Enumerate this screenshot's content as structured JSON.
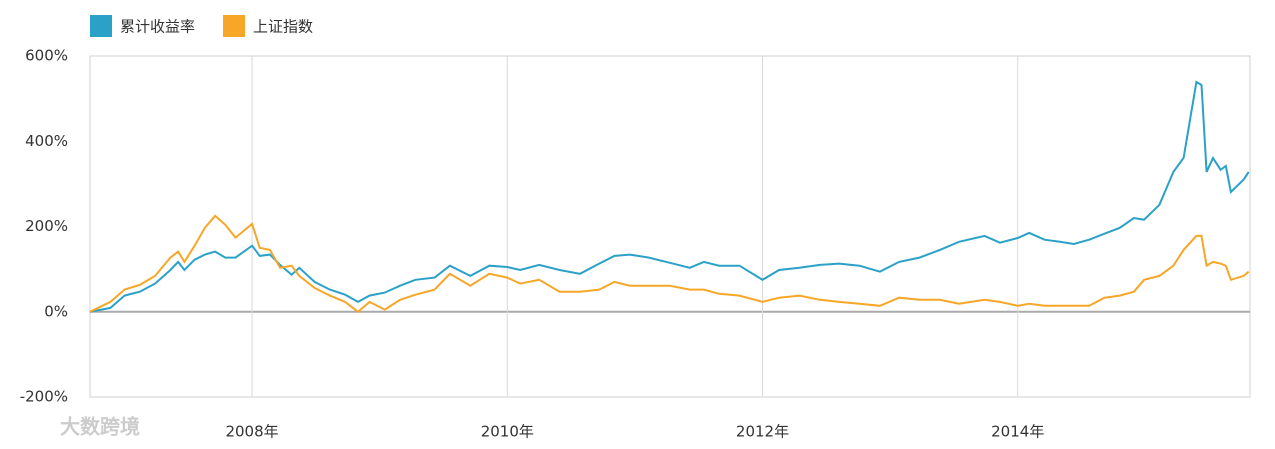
{
  "chart_data": {
    "type": "line",
    "legend": "top-left",
    "watermark": "大数跨境",
    "x": [
      2006.73,
      2006.89,
      2007.0,
      2007.12,
      2007.24,
      2007.36,
      2007.42,
      2007.47,
      2007.55,
      2007.63,
      2007.71,
      2007.79,
      2007.87,
      2008.0,
      2008.06,
      2008.14,
      2008.22,
      2008.31,
      2008.37,
      2008.49,
      2008.61,
      2008.73,
      2008.83,
      2008.92,
      2009.04,
      2009.16,
      2009.28,
      2009.43,
      2009.55,
      2009.71,
      2009.86,
      2010.0,
      2010.1,
      2010.25,
      2010.41,
      2010.57,
      2010.72,
      2010.84,
      2010.96,
      2011.11,
      2011.27,
      2011.43,
      2011.54,
      2011.66,
      2011.82,
      2012.0,
      2012.13,
      2012.29,
      2012.45,
      2012.6,
      2012.76,
      2012.92,
      2013.07,
      2013.23,
      2013.39,
      2013.54,
      2013.74,
      2013.86,
      2014.0,
      2014.09,
      2014.21,
      2014.33,
      2014.44,
      2014.56,
      2014.68,
      2014.8,
      2014.91,
      2014.99,
      2015.11,
      2015.22,
      2015.3,
      2015.4,
      2015.44,
      2015.48,
      2015.53,
      2015.59,
      2015.63,
      2015.67,
      2015.77,
      2015.81
    ],
    "series": [
      {
        "name": "累计收益率",
        "color": "#2ba1c8",
        "values": [
          0,
          9,
          38,
          47,
          66,
          98,
          117,
          98,
          122,
          134,
          141,
          127,
          127,
          155,
          131,
          134,
          110,
          87,
          103,
          70,
          52,
          40,
          23,
          38,
          45,
          61,
          75,
          80,
          108,
          84,
          108,
          105,
          98,
          110,
          98,
          89,
          113,
          131,
          134,
          127,
          115,
          103,
          117,
          108,
          108,
          75,
          98,
          103,
          110,
          113,
          108,
          94,
          117,
          127,
          145,
          164,
          178,
          162,
          173,
          185,
          169,
          164,
          159,
          169,
          183,
          197,
          220,
          216,
          251,
          328,
          361,
          539,
          532,
          328,
          361,
          333,
          342,
          281,
          310,
          328
        ]
      },
      {
        "name": "上证指数",
        "color": "#f7a627",
        "values": [
          0,
          23,
          52,
          63,
          84,
          127,
          141,
          117,
          155,
          197,
          225,
          204,
          174,
          206,
          150,
          145,
          103,
          108,
          84,
          56,
          38,
          23,
          0,
          23,
          5,
          28,
          40,
          52,
          89,
          61,
          89,
          80,
          66,
          75,
          47,
          47,
          52,
          70,
          61,
          61,
          61,
          52,
          52,
          42,
          38,
          23,
          33,
          38,
          28,
          23,
          19,
          14,
          33,
          28,
          28,
          19,
          28,
          23,
          14,
          19,
          14,
          14,
          14,
          14,
          33,
          38,
          47,
          75,
          84,
          108,
          145,
          178,
          178,
          108,
          117,
          113,
          108,
          75,
          84,
          94
        ]
      }
    ],
    "xlim": [
      2006.73,
      2015.82
    ],
    "xticks": [
      {
        "value": 2008,
        "label": "2008年"
      },
      {
        "value": 2010,
        "label": "2010年"
      },
      {
        "value": 2012,
        "label": "2012年"
      },
      {
        "value": 2014,
        "label": "2014年"
      }
    ],
    "ylim": [
      -200,
      600
    ],
    "yticks": [
      {
        "value": -200,
        "label": "-200%"
      },
      {
        "value": 0,
        "label": "0%"
      },
      {
        "value": 200,
        "label": "200%"
      },
      {
        "value": 400,
        "label": "400%"
      },
      {
        "value": 600,
        "label": "600%"
      }
    ],
    "grid": true
  }
}
